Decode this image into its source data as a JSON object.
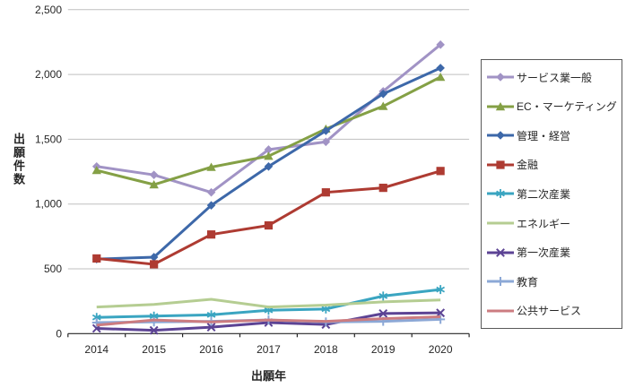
{
  "chart_data": {
    "type": "line",
    "title": "",
    "xlabel": "出願年",
    "ylabel": "出願件数",
    "categories": [
      "2014",
      "2015",
      "2016",
      "2017",
      "2018",
      "2019",
      "2020"
    ],
    "ylim": [
      0,
      2500
    ],
    "y_ticks": [
      0,
      500,
      1000,
      1500,
      2000,
      2500
    ],
    "y_tick_labels": [
      "0",
      "500",
      "1,000",
      "1,500",
      "2,000",
      "2,500"
    ],
    "grid": "horizontal",
    "gridline_color": "#bfbfbf",
    "axis_color": "#262626",
    "legend_position": "right",
    "series": [
      {
        "name": "サービス業一般",
        "color": "#a193c5",
        "marker": "diamond",
        "values": [
          1290,
          1225,
          1090,
          1420,
          1480,
          1870,
          2230
        ]
      },
      {
        "name": "EC・マーケティング",
        "color": "#84a045",
        "marker": "triangle",
        "values": [
          1260,
          1150,
          1285,
          1370,
          1580,
          1755,
          1980
        ]
      },
      {
        "name": "管理・経営",
        "color": "#3d68a9",
        "marker": "diamond",
        "values": [
          575,
          590,
          990,
          1290,
          1565,
          1850,
          2050
        ]
      },
      {
        "name": "金融",
        "color": "#ae3b32",
        "marker": "square",
        "values": [
          580,
          535,
          765,
          835,
          1090,
          1125,
          1255
        ]
      },
      {
        "name": "第二次産業",
        "color": "#3aa5c1",
        "marker": "asterisk",
        "values": [
          125,
          135,
          145,
          180,
          190,
          290,
          340
        ]
      },
      {
        "name": "エネルギー",
        "color": "#b5cd92",
        "marker": "none",
        "values": [
          205,
          225,
          265,
          205,
          220,
          245,
          260
        ]
      },
      {
        "name": "第一次産業",
        "color": "#5c4394",
        "marker": "x",
        "values": [
          40,
          25,
          50,
          85,
          70,
          155,
          160
        ]
      },
      {
        "name": "教育",
        "color": "#8ca8d6",
        "marker": "plus",
        "values": [
          85,
          90,
          95,
          105,
          90,
          95,
          110
        ]
      },
      {
        "name": "公共サービス",
        "color": "#cc7c80",
        "marker": "none",
        "values": [
          65,
          105,
          90,
          105,
          95,
          115,
          130
        ]
      }
    ]
  }
}
